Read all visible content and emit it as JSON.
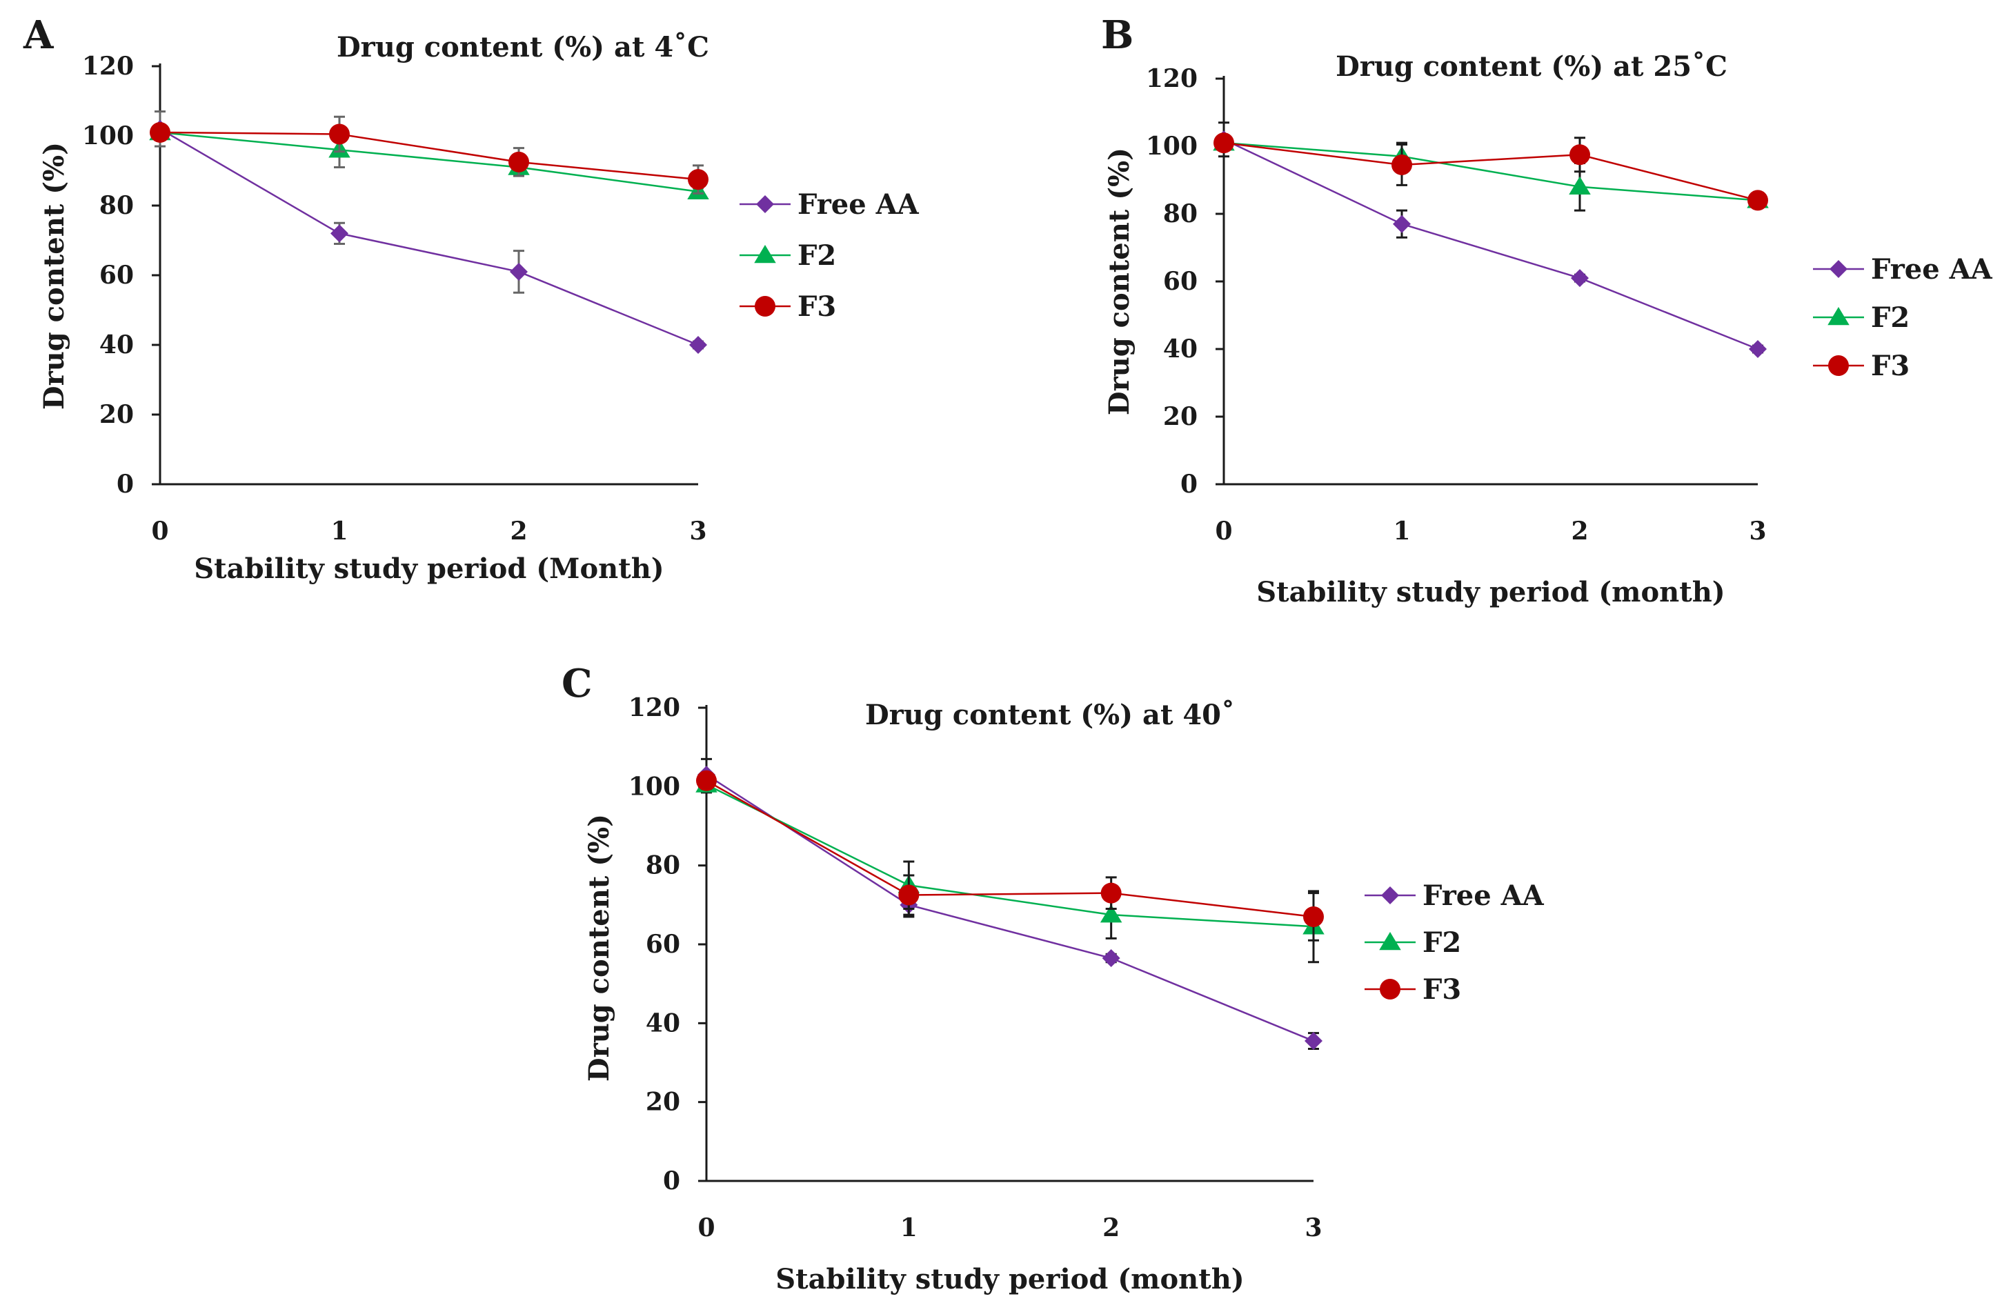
{
  "colors": {
    "free_aa": "#7030a0",
    "f2": "#00b050",
    "f3": "#c00000",
    "error_dark": "#1a1a1a",
    "error_grey": "#666666"
  },
  "chart_data": [
    {
      "panel": "A",
      "type": "line",
      "title": "Drug content (%) at 4˚C",
      "xlabel": "Stability study period (Month)",
      "ylabel": "Drug content (%)",
      "categories": [
        "0",
        "1",
        "2",
        "3"
      ],
      "x": [
        0,
        1,
        2,
        3
      ],
      "ylim": [
        0,
        120
      ],
      "yticks": [
        "0",
        "20",
        "40",
        "60",
        "80",
        "100",
        "120"
      ],
      "series": [
        {
          "name": "Free AA",
          "values": [
            102,
            72,
            61,
            40
          ],
          "errors": [
            5,
            3,
            6,
            1
          ]
        },
        {
          "name": "F2",
          "values": [
            101,
            96,
            91,
            84
          ],
          "errors": [
            2,
            5,
            2,
            1
          ]
        },
        {
          "name": "F3",
          "values": [
            101,
            100.5,
            92.5,
            87.5
          ],
          "errors": [
            2,
            5,
            4,
            4
          ]
        }
      ],
      "legend": [
        "Free AA",
        "F2",
        "F3"
      ]
    },
    {
      "panel": "B",
      "type": "line",
      "title": "Drug content (%) at 25˚C",
      "xlabel": "Stability study period (month)",
      "ylabel": "Drug content (%)",
      "categories": [
        "0",
        "1",
        "2",
        "3"
      ],
      "x": [
        0,
        1,
        2,
        3
      ],
      "ylim": [
        0,
        120
      ],
      "yticks": [
        "0",
        "20",
        "40",
        "60",
        "80",
        "100",
        "120"
      ],
      "series": [
        {
          "name": "Free AA",
          "values": [
            102,
            77,
            61,
            40
          ],
          "errors": [
            5,
            4,
            1,
            1
          ]
        },
        {
          "name": "F2",
          "values": [
            101,
            97,
            88,
            84
          ],
          "errors": [
            2,
            4,
            7,
            1
          ]
        },
        {
          "name": "F3",
          "values": [
            101,
            94.5,
            97.5,
            84
          ],
          "errors": [
            2,
            6,
            5,
            1
          ]
        }
      ],
      "legend": [
        "Free AA",
        "F2",
        "F3"
      ]
    },
    {
      "panel": "C",
      "type": "line",
      "title": "Drug content (%) at 40˚",
      "xlabel": "Stability study period  (month)",
      "ylabel": "Drug content (%)",
      "categories": [
        "0",
        "1",
        "2",
        "3"
      ],
      "x": [
        0,
        1,
        2,
        3
      ],
      "ylim": [
        0,
        120
      ],
      "yticks": [
        "0",
        "20",
        "40",
        "60",
        "80",
        "100",
        "120"
      ],
      "series": [
        {
          "name": "Free AA",
          "values": [
            103,
            70,
            56.5,
            35.5
          ],
          "errors": [
            4,
            3,
            1,
            2
          ]
        },
        {
          "name": "F2",
          "values": [
            100.5,
            75,
            67.5,
            64.5
          ],
          "errors": [
            2,
            6,
            6,
            9
          ]
        },
        {
          "name": "F3",
          "values": [
            101.5,
            72.5,
            73,
            67
          ],
          "errors": [
            2,
            5,
            4,
            6
          ]
        }
      ],
      "legend": [
        "Free AA",
        "F2",
        "F3"
      ]
    }
  ]
}
